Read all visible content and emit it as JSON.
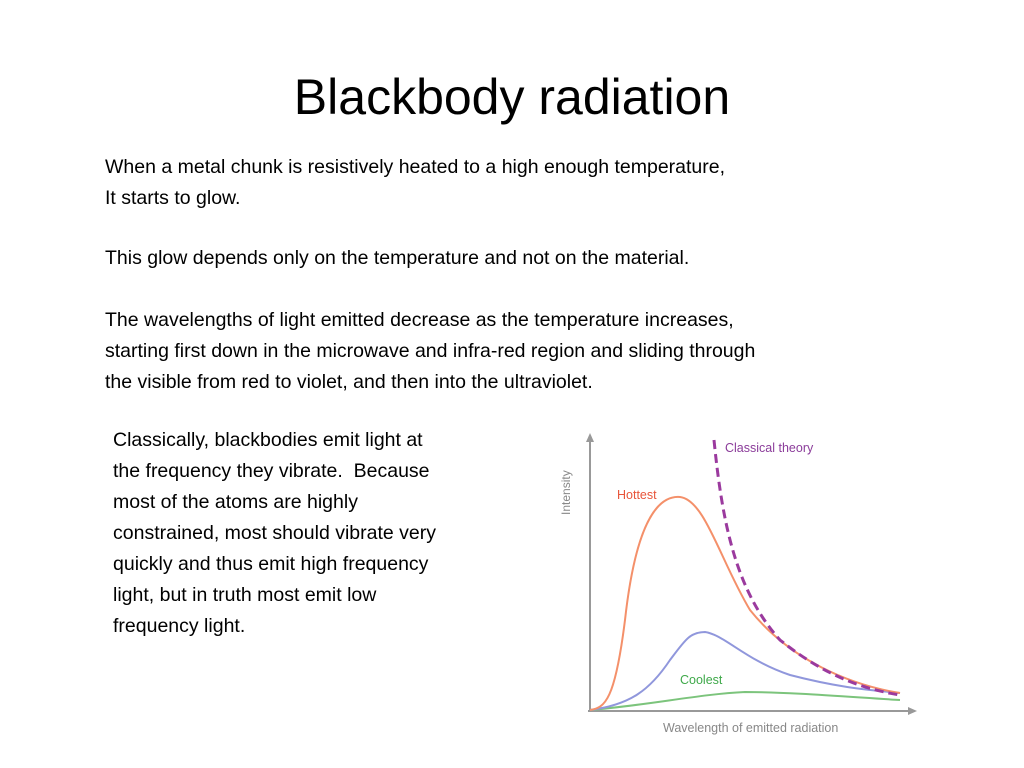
{
  "title": "Blackbody radiation",
  "paragraphs": [
    [
      "When a metal chunk is resistively heated to a high enough temperature,",
      "It starts to glow."
    ],
    [
      "This glow depends only on the temperature and not on the material."
    ],
    [
      "The wavelengths of light emitted decrease as the temperature increases,",
      "starting first down in the microwave and infra-red region and sliding through",
      "the visible from red to violet, and then into the ultraviolet."
    ]
  ],
  "side_text": [
    "Classically, blackbodies emit light at",
    "the frequency they vibrate.  Because",
    "most of the atoms are highly",
    "constrained, most should vibrate very",
    "quickly and thus emit high frequency",
    "light, but in truth most emit low",
    "frequency light."
  ],
  "figure": {
    "y_label": "Intensity",
    "x_label": "Wavelength of emitted radiation",
    "classical_label": "Classical theory",
    "hottest_label": "Hottest",
    "coolest_label": "Coolest"
  }
}
